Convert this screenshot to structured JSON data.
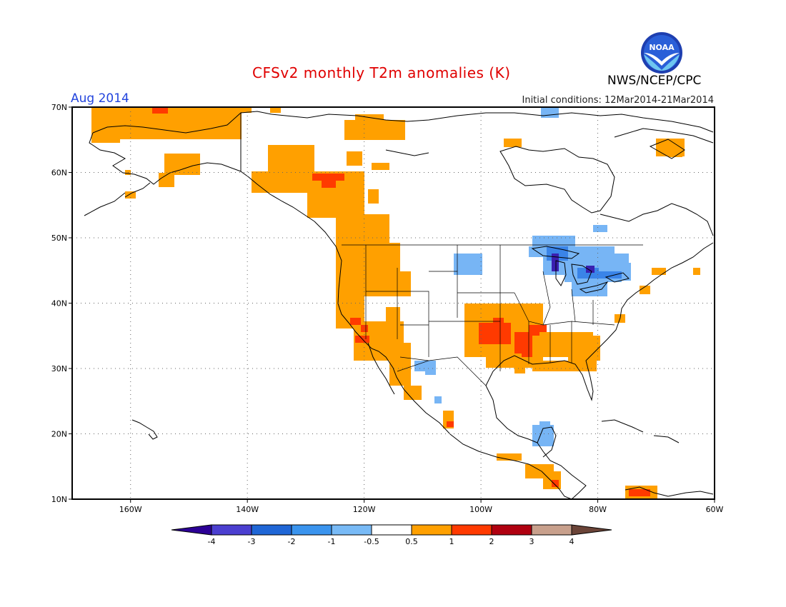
{
  "header": {
    "title": "CFSv2 monthly T2m anomalies (K)",
    "month": "Aug 2014",
    "initial_conditions": "Initial conditions: 12Mar2014-21Mar2014",
    "agency": "NWS/NCEP/CPC",
    "logo_text": "NOAA",
    "title_color": "#e00000",
    "month_color": "#2244dd"
  },
  "map": {
    "extent": {
      "lon_min": -170,
      "lon_max": -60,
      "lat_min": 10,
      "lat_max": 70
    },
    "lat_ticks": [
      "70N",
      "60N",
      "50N",
      "40N",
      "30N",
      "20N",
      "10N"
    ],
    "lon_ticks": [
      "160W",
      "140W",
      "120W",
      "100W",
      "80W",
      "60W"
    ],
    "grid": "dotted",
    "colors": {
      "light_orange": "#ffa000",
      "red_orange": "#ff3a00",
      "light_blue": "#77b5f5",
      "mid_blue": "#3a84e8",
      "dark_blue": "#3a20b0"
    }
  },
  "colorbar": {
    "labels": [
      "-4",
      "-3",
      "-2",
      "-1",
      "-0.5",
      "0.5",
      "1",
      "2",
      "3",
      "4"
    ],
    "colors": [
      "#2c0096",
      "#4b3fd0",
      "#1f66d6",
      "#3a94ee",
      "#78baf6",
      "#ffffff",
      "#ffa000",
      "#ff3a00",
      "#b00010",
      "#c8a08c",
      "#6b4438"
    ]
  }
}
